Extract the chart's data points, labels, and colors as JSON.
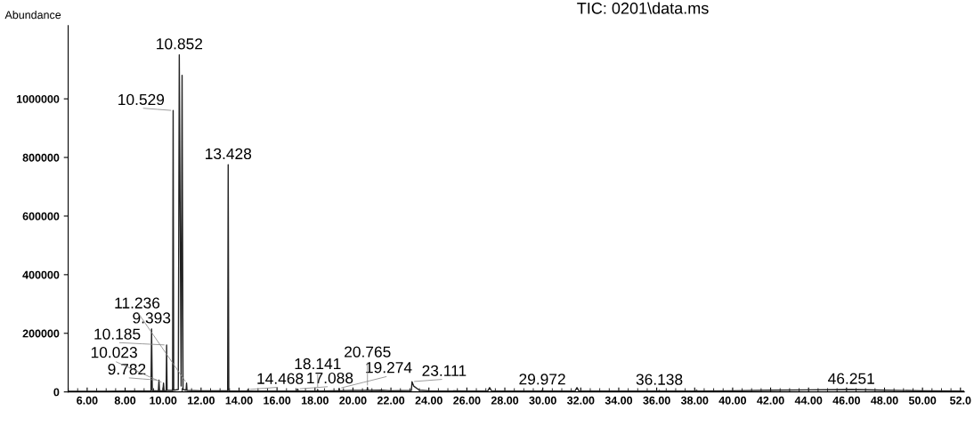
{
  "chart_data": {
    "type": "line",
    "title": "TIC: 0201\\data.ms",
    "ylabel": "Abundance",
    "x": [
      5.0,
      6.0,
      7.0,
      8.0,
      8.5,
      9.0,
      9.36,
      9.393,
      9.43,
      9.75,
      9.782,
      9.81,
      9.99,
      10.023,
      10.05,
      10.16,
      10.185,
      10.21,
      10.5,
      10.529,
      10.56,
      10.8,
      10.852,
      10.95,
      11.0,
      11.05,
      11.21,
      11.236,
      11.26,
      12.0,
      13.0,
      13.4,
      13.428,
      13.46,
      14.44,
      14.468,
      14.5,
      16.0,
      17.06,
      17.088,
      17.12,
      18.11,
      18.141,
      18.17,
      19.0,
      19.25,
      19.274,
      19.3,
      20.0,
      20.74,
      20.765,
      20.79,
      21.5,
      22.0,
      23.08,
      23.111,
      23.2,
      23.5,
      24.0,
      26.0,
      27.1,
      27.2,
      27.3,
      29.94,
      29.972,
      30.0,
      31.7,
      31.8,
      31.9,
      34.0,
      36.11,
      36.138,
      36.17,
      38.05,
      38.1,
      38.15,
      40.0,
      42.0,
      44.0,
      46.251,
      48.0,
      50.0,
      52.2
    ],
    "series": [
      {
        "color": "#222222",
        "values": [
          2000,
          2000,
          2000,
          3000,
          3000,
          3000,
          3000,
          215000,
          4000,
          4000,
          40000,
          4000,
          4000,
          30000,
          4000,
          4000,
          160000,
          5000,
          5000,
          960000,
          6000,
          8000,
          1150000,
          20000,
          1080000,
          8000,
          6000,
          30000,
          5000,
          4000,
          4000,
          4000,
          775000,
          4000,
          3000,
          8000,
          3000,
          3000,
          3000,
          10000,
          3000,
          3000,
          8000,
          3000,
          4000,
          4000,
          12000,
          4000,
          5000,
          5000,
          15000,
          5000,
          6000,
          4000,
          5000,
          35000,
          20000,
          6000,
          4000,
          3000,
          3000,
          15000,
          3000,
          3000,
          6000,
          3000,
          3000,
          15000,
          3000,
          3000,
          3000,
          5000,
          3000,
          3000,
          6000,
          3000,
          4000,
          6000,
          7000,
          8000,
          6000,
          4000,
          3000
        ]
      }
    ],
    "xlim": [
      5.0,
      52.2
    ],
    "xticks": [
      {
        "value": 6,
        "label": "6.00"
      },
      {
        "value": 8,
        "label": "8.00"
      },
      {
        "value": 10,
        "label": "10.00"
      },
      {
        "value": 12,
        "label": "12.00"
      },
      {
        "value": 14,
        "label": "14.00"
      },
      {
        "value": 16,
        "label": "16.00"
      },
      {
        "value": 18,
        "label": "18.00"
      },
      {
        "value": 20,
        "label": "20.00"
      },
      {
        "value": 22,
        "label": "22.00"
      },
      {
        "value": 24,
        "label": "24.00"
      },
      {
        "value": 26,
        "label": "26.00"
      },
      {
        "value": 28,
        "label": "28.00"
      },
      {
        "value": 30,
        "label": "30.00"
      },
      {
        "value": 32,
        "label": "32.00"
      },
      {
        "value": 34,
        "label": "34.00"
      },
      {
        "value": 36,
        "label": "36.00"
      },
      {
        "value": 38,
        "label": "38.00"
      },
      {
        "value": 40,
        "label": "40.00"
      },
      {
        "value": 42,
        "label": "42.00"
      },
      {
        "value": 44,
        "label": "44.00"
      },
      {
        "value": 46,
        "label": "46.00"
      },
      {
        "value": 48,
        "label": "48.00"
      },
      {
        "value": 50,
        "label": "50.00"
      },
      {
        "value": 52,
        "label": "52.0"
      }
    ],
    "ylim": [
      0,
      1250000
    ],
    "yticks": [
      0,
      200000,
      400000,
      600000,
      800000,
      1000000
    ],
    "grid": false,
    "marker": "none",
    "line_style": "solid",
    "annotations": [
      {
        "text": "9.393",
        "x": 9.393,
        "y": 215000
      },
      {
        "text": "9.782",
        "x": 9.782,
        "y": 40000
      },
      {
        "text": "10.023",
        "x": 10.023,
        "y": 30000
      },
      {
        "text": "10.185",
        "x": 10.185,
        "y": 160000
      },
      {
        "text": "10.529",
        "x": 10.529,
        "y": 960000
      },
      {
        "text": "10.852",
        "x": 10.852,
        "y": 1150000
      },
      {
        "text": "11.236",
        "x": 11.236,
        "y": 30000
      },
      {
        "text": "13.428",
        "x": 13.428,
        "y": 775000
      },
      {
        "text": "14.468",
        "x": 14.468,
        "y": 8000
      },
      {
        "text": "17.088",
        "x": 17.088,
        "y": 10000
      },
      {
        "text": "18.141",
        "x": 18.141,
        "y": 8000
      },
      {
        "text": "19.274",
        "x": 19.274,
        "y": 12000
      },
      {
        "text": "20.765",
        "x": 20.765,
        "y": 15000
      },
      {
        "text": "23.111",
        "x": 23.111,
        "y": 35000
      },
      {
        "text": "29.972",
        "x": 29.972,
        "y": 6000
      },
      {
        "text": "36.138",
        "x": 36.138,
        "y": 5000
      },
      {
        "text": "46.251",
        "x": 46.251,
        "y": 8000
      }
    ]
  }
}
